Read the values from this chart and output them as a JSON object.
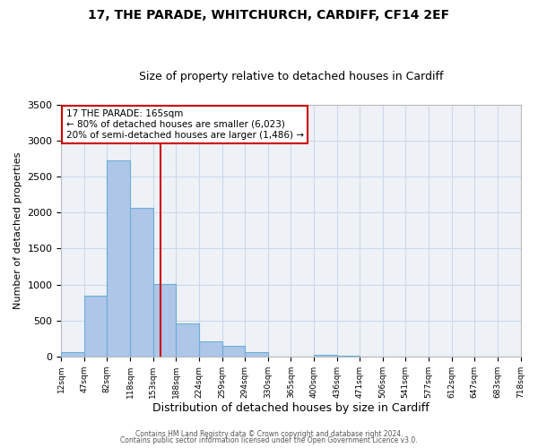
{
  "title1": "17, THE PARADE, WHITCHURCH, CARDIFF, CF14 2EF",
  "title2": "Size of property relative to detached houses in Cardiff",
  "xlabel": "Distribution of detached houses by size in Cardiff",
  "ylabel": "Number of detached properties",
  "bin_edges": [
    12,
    47,
    82,
    118,
    153,
    188,
    224,
    259,
    294,
    330,
    365,
    400,
    436,
    471,
    506,
    541,
    577,
    612,
    647,
    683,
    718
  ],
  "bar_heights": [
    55,
    850,
    2720,
    2060,
    1010,
    455,
    210,
    145,
    55,
    0,
    0,
    25,
    15,
    0,
    0,
    0,
    0,
    0,
    0,
    0
  ],
  "bar_color": "#aec6e8",
  "bar_edgecolor": "#6baed6",
  "bar_linewidth": 0.8,
  "vline_x": 165,
  "vline_color": "#cc0000",
  "annotation_line1": "17 THE PARADE: 165sqm",
  "annotation_line2": "← 80% of detached houses are smaller (6,023)",
  "annotation_line3": "20% of semi-detached houses are larger (1,486) →",
  "ylim": [
    0,
    3500
  ],
  "yticks": [
    0,
    500,
    1000,
    1500,
    2000,
    2500,
    3000,
    3500
  ],
  "tick_labels": [
    "12sqm",
    "47sqm",
    "82sqm",
    "118sqm",
    "153sqm",
    "188sqm",
    "224sqm",
    "259sqm",
    "294sqm",
    "330sqm",
    "365sqm",
    "400sqm",
    "436sqm",
    "471sqm",
    "506sqm",
    "541sqm",
    "577sqm",
    "612sqm",
    "647sqm",
    "683sqm",
    "718sqm"
  ],
  "footer1": "Contains HM Land Registry data © Crown copyright and database right 2024.",
  "footer2": "Contains public sector information licensed under the Open Government Licence v3.0.",
  "grid_color": "#ccd9e8",
  "bg_color": "#eef2f7",
  "title1_fontsize": 10,
  "title2_fontsize": 9,
  "xlabel_fontsize": 9,
  "ylabel_fontsize": 8,
  "ytick_fontsize": 8,
  "xtick_fontsize": 6.5,
  "footer_fontsize": 5.5,
  "annot_fontsize": 7.5
}
